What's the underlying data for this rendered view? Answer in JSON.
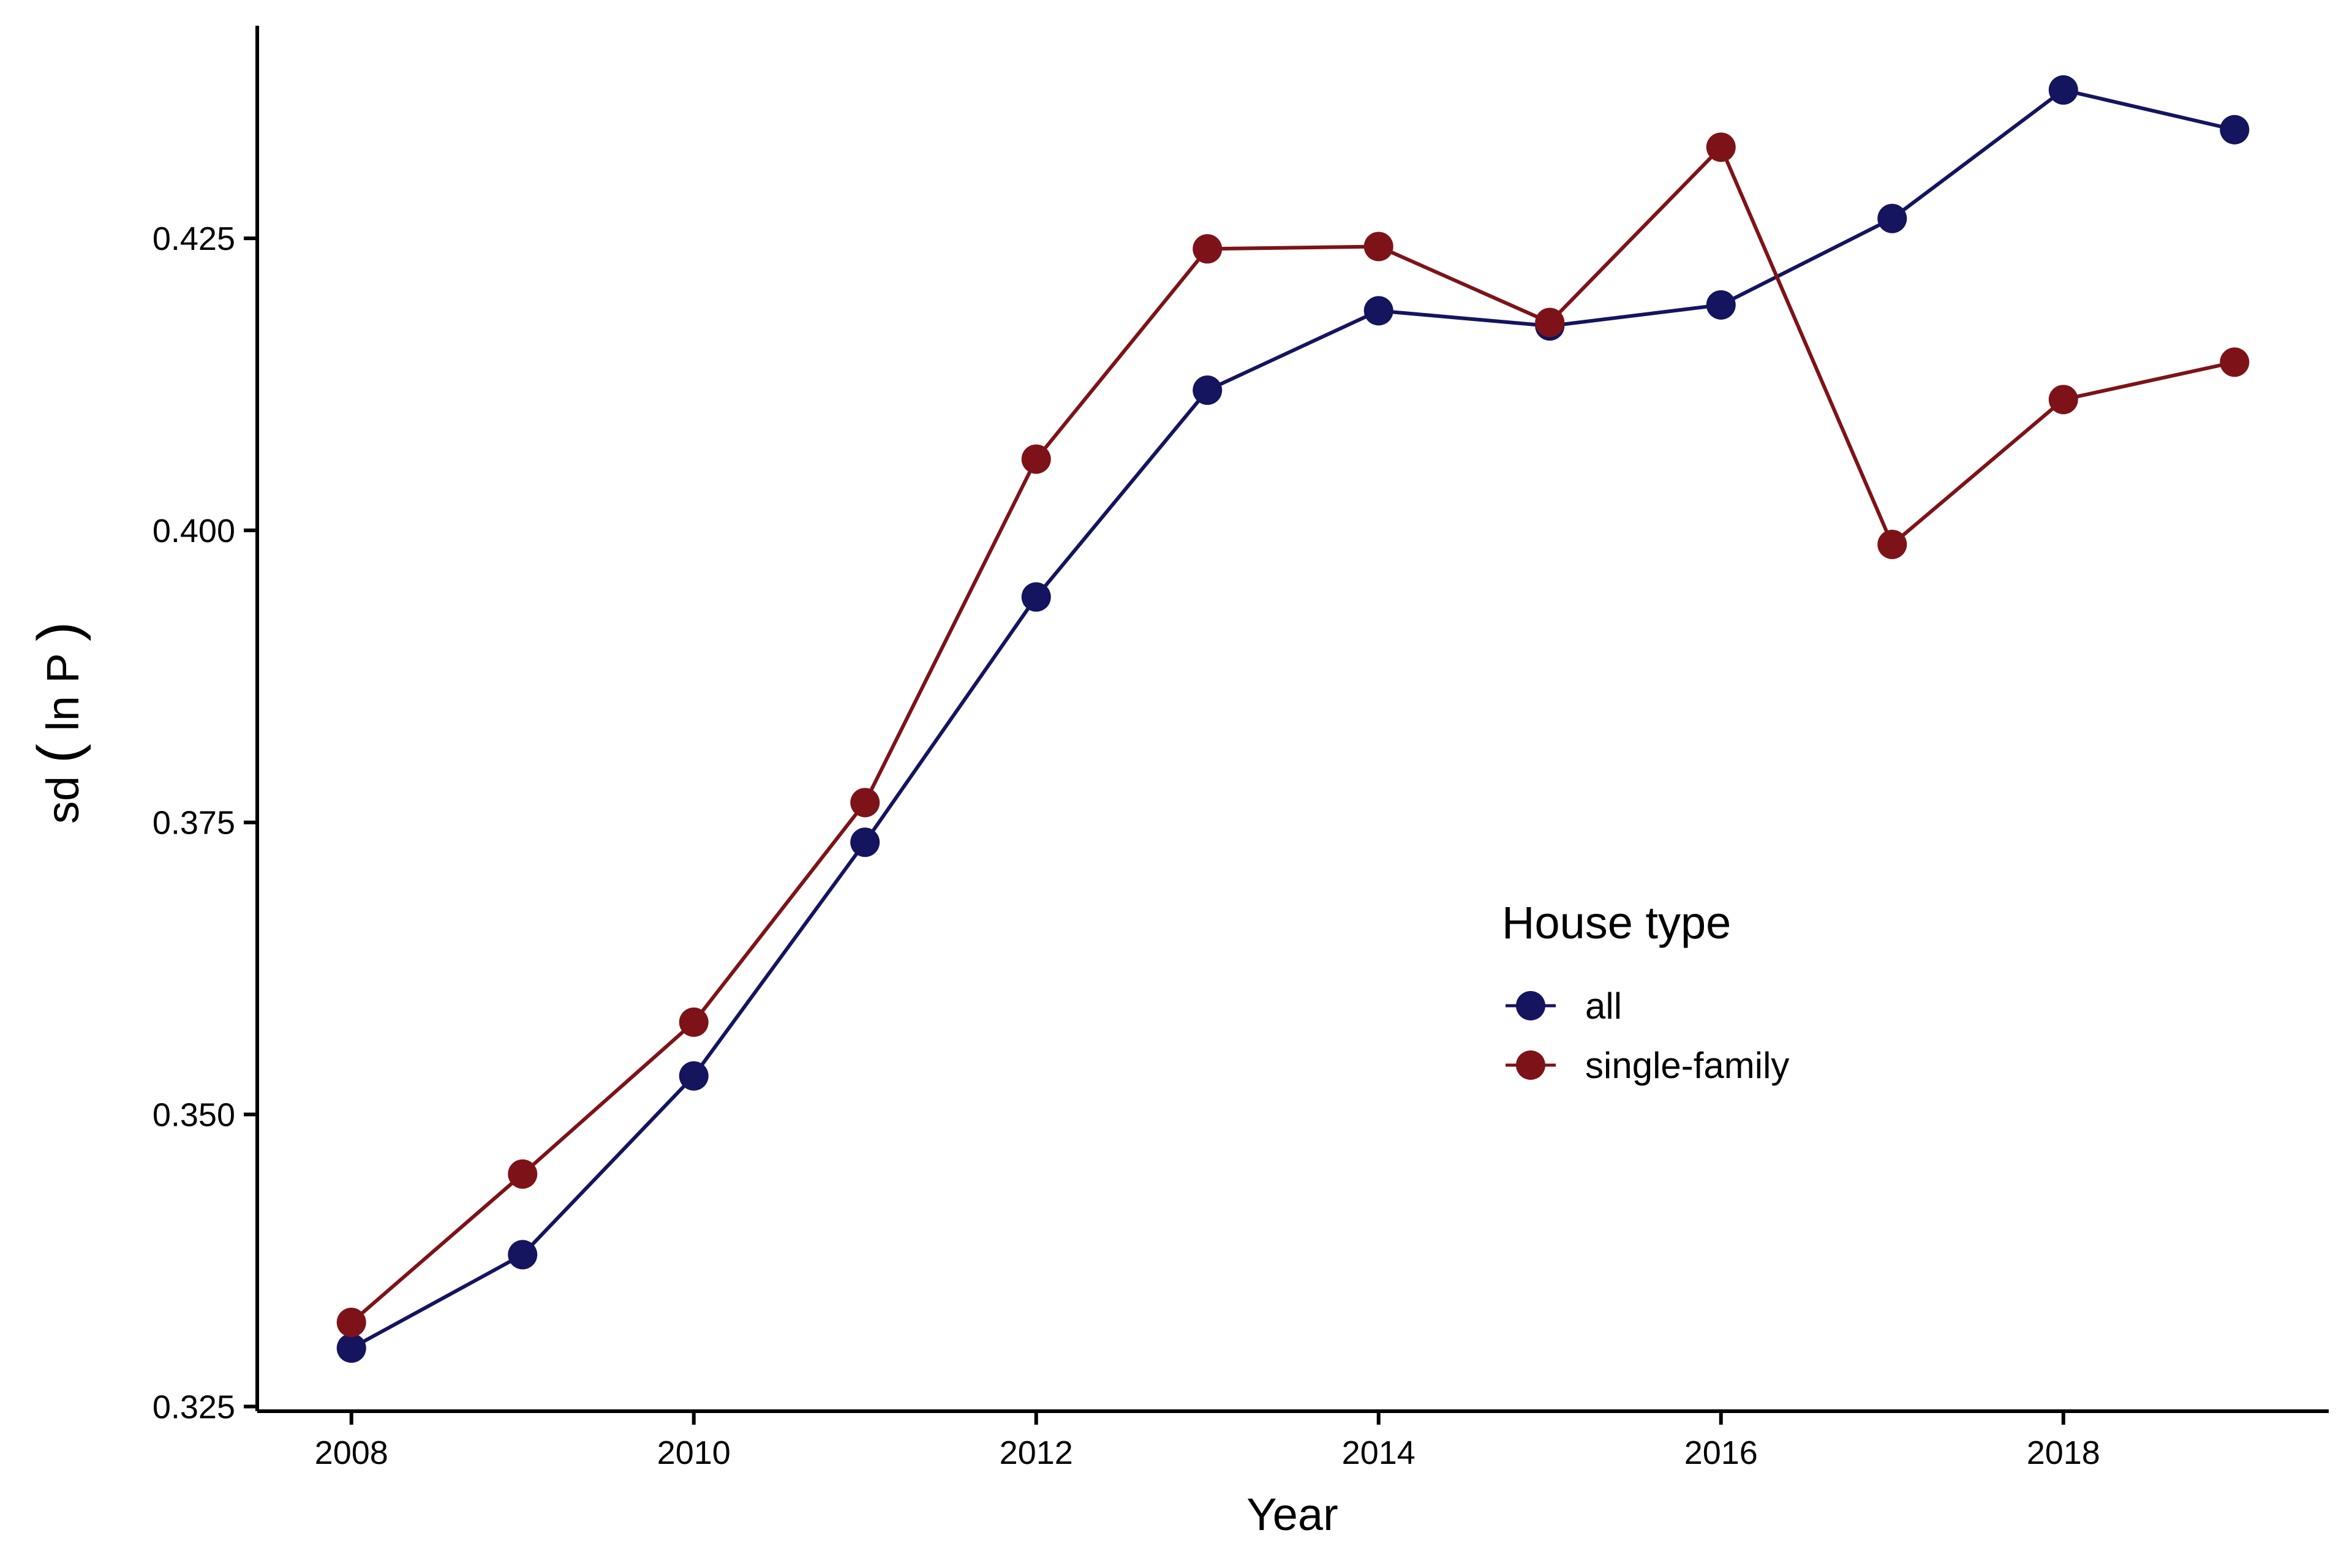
{
  "chart_data": {
    "type": "line",
    "title": "",
    "xlabel": "Year",
    "ylabel_parts": {
      "pre": "sd",
      "inner": "ln P"
    },
    "xlim": [
      2007.45,
      2019.55
    ],
    "ylim": [
      0.3246,
      0.4432
    ],
    "x_ticks": [
      2008,
      2010,
      2012,
      2014,
      2016,
      2018
    ],
    "x_tick_labels": [
      "2008",
      "2010",
      "2012",
      "2014",
      "2016",
      "2018"
    ],
    "y_ticks": [
      0.325,
      0.35,
      0.375,
      0.4,
      0.425
    ],
    "y_tick_labels": [
      "0.325",
      "0.350",
      "0.375",
      "0.400",
      "0.425"
    ],
    "x": [
      2008,
      2009,
      2010,
      2011,
      2012,
      2013,
      2014,
      2015,
      2016,
      2017,
      2018,
      2019
    ],
    "series": [
      {
        "name": "all",
        "color": "#14145f",
        "values": [
          0.33,
          0.338,
          0.3533,
          0.3733,
          0.3943,
          0.412,
          0.4188,
          0.4175,
          0.4193,
          0.4267,
          0.4377,
          0.4343
        ]
      },
      {
        "name": "single-family",
        "color": "#7d1318",
        "values": [
          0.3322,
          0.3449,
          0.3579,
          0.3767,
          0.4061,
          0.4241,
          0.4243,
          0.4178,
          0.4328,
          0.3988,
          0.4112,
          0.4144
        ]
      }
    ],
    "legend": {
      "title": "House type",
      "position": "inside-right"
    },
    "grid": false
  }
}
